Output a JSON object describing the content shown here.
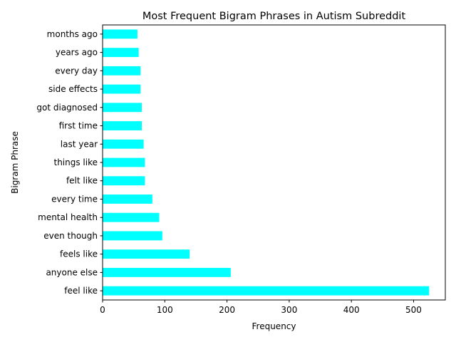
{
  "chart_data": {
    "type": "bar",
    "orientation": "horizontal",
    "title": "Most Frequent Bigram Phrases in Autism Subreddit",
    "xlabel": "Frequency",
    "ylabel": "Bigram Phrase",
    "categories": [
      "feel like",
      "anyone else",
      "feels like",
      "even though",
      "mental health",
      "every time",
      "felt like",
      "things like",
      "last year",
      "first time",
      "got diagnosed",
      "side effects",
      "every day",
      "years ago",
      "months ago"
    ],
    "values": [
      525,
      206,
      140,
      96,
      91,
      80,
      68,
      68,
      66,
      63,
      63,
      61,
      61,
      58,
      56
    ],
    "xlim": [
      0,
      551
    ],
    "xticks": [
      0,
      100,
      200,
      300,
      400,
      500
    ],
    "grid": false,
    "legend": "none",
    "bar_color": "#00FFFF"
  }
}
